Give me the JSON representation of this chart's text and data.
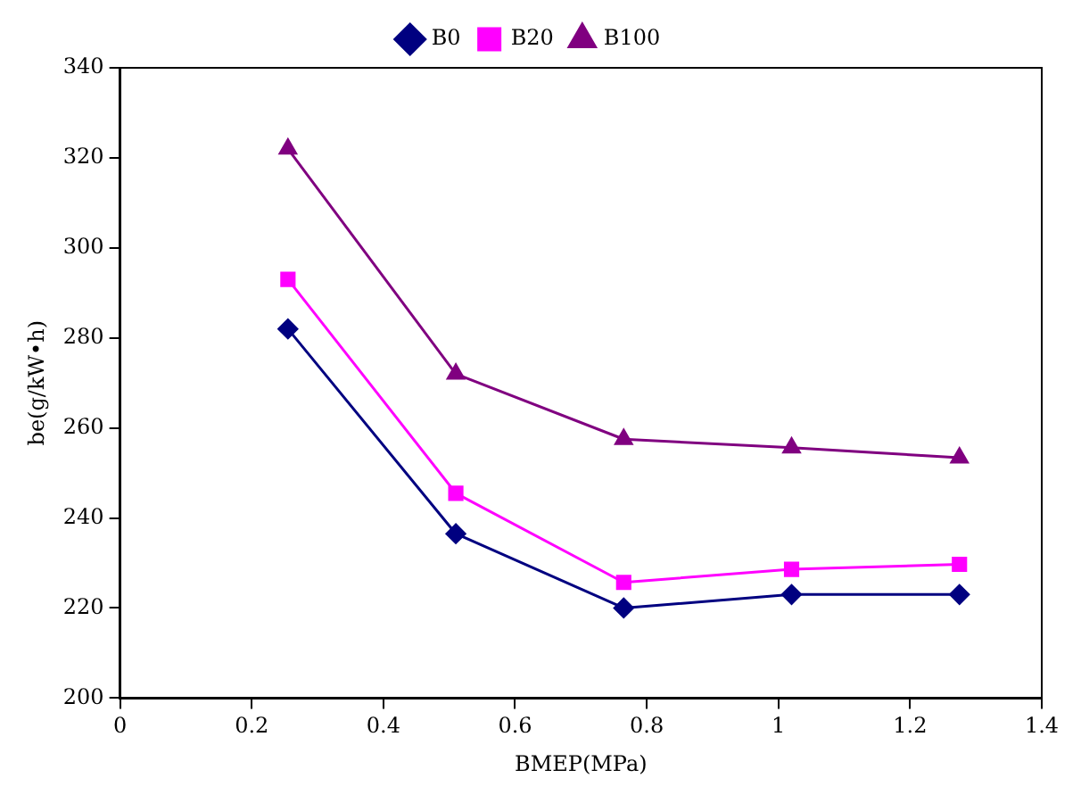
{
  "chart_data": {
    "type": "line",
    "xlabel": "BMEP(MPa)",
    "ylabel": "be(g/kW•h)",
    "x": [
      0.255,
      0.51,
      0.765,
      1.02,
      1.275
    ],
    "series": [
      {
        "name": "B0",
        "color": "#000080",
        "marker": "diamond",
        "values": [
          282,
          236.5,
          220,
          223,
          223
        ]
      },
      {
        "name": "B20",
        "color": "#ff00ff",
        "marker": "square",
        "values": [
          293,
          245.5,
          225.7,
          228.6,
          229.7
        ]
      },
      {
        "name": "B100",
        "color": "#800080",
        "marker": "triangle",
        "values": [
          322,
          272,
          257.5,
          255.6,
          253.4
        ]
      }
    ],
    "xlim": [
      0,
      1.4
    ],
    "xticks": [
      0,
      0.2,
      0.4,
      0.6,
      0.8,
      1,
      1.2,
      1.4
    ],
    "ylim": [
      200,
      340
    ],
    "yticks": [
      200,
      220,
      240,
      260,
      280,
      300,
      320,
      340
    ],
    "grid": false,
    "legend": "top",
    "line_style": "solid"
  }
}
